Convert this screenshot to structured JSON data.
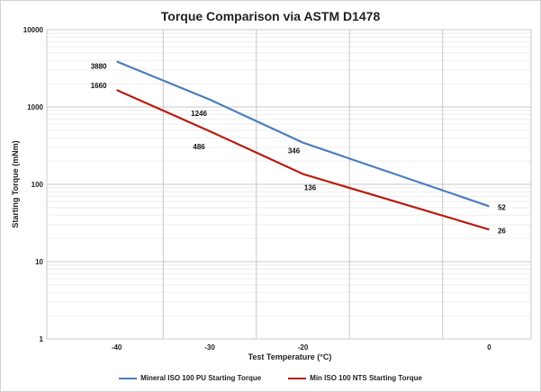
{
  "chart_data": {
    "type": "line",
    "title": "Torque Comparison via ASTM D1478",
    "xlabel": "Test Temperature (°C)",
    "ylabel": "Starting Torque (mNm)",
    "x": [
      -40,
      -30,
      -20,
      0
    ],
    "xticks": [
      -40,
      -30,
      -20,
      0
    ],
    "xtick_labels": [
      "-40",
      "-30",
      "-20",
      "0"
    ],
    "xlim": [
      -47.5,
      4.5
    ],
    "yscale": "log",
    "ylim": [
      1,
      10000
    ],
    "yticks": [
      1,
      10,
      100,
      1000,
      10000
    ],
    "ytick_labels": [
      "1",
      "10",
      "100",
      "1000",
      "10000"
    ],
    "grid": true,
    "legend_position": "bottom",
    "series": [
      {
        "name": "Mineral ISO 100 PU Starting Torque",
        "color": "#4a7ebb",
        "values": [
          3880,
          1246,
          346,
          52
        ],
        "labels": [
          "3880",
          "1246",
          "346",
          "52"
        ]
      },
      {
        "name": "Min ISO 100 NTS Starting Torque",
        "color": "#b81c0f",
        "values": [
          1660,
          486,
          136,
          26
        ],
        "labels": [
          "1660",
          "486",
          "136",
          "26"
        ]
      }
    ]
  }
}
